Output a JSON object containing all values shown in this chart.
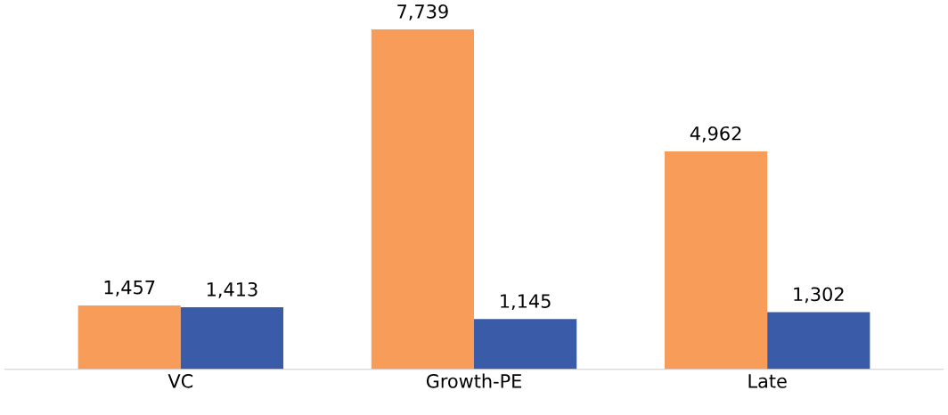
{
  "chart_data": {
    "type": "bar",
    "categories": [
      "VC",
      "Growth-PE",
      "Late"
    ],
    "series": [
      {
        "color": "#f79d59",
        "values": [
          1457,
          7739,
          4962
        ],
        "value_labels": [
          "1,457",
          "7,739",
          "4,962"
        ]
      },
      {
        "color": "#3a5ba8",
        "values": [
          1413,
          1145,
          1302
        ],
        "value_labels": [
          "1,413",
          "1,145",
          "1,302"
        ]
      }
    ],
    "tick_labels": "x",
    "grid": false
  }
}
